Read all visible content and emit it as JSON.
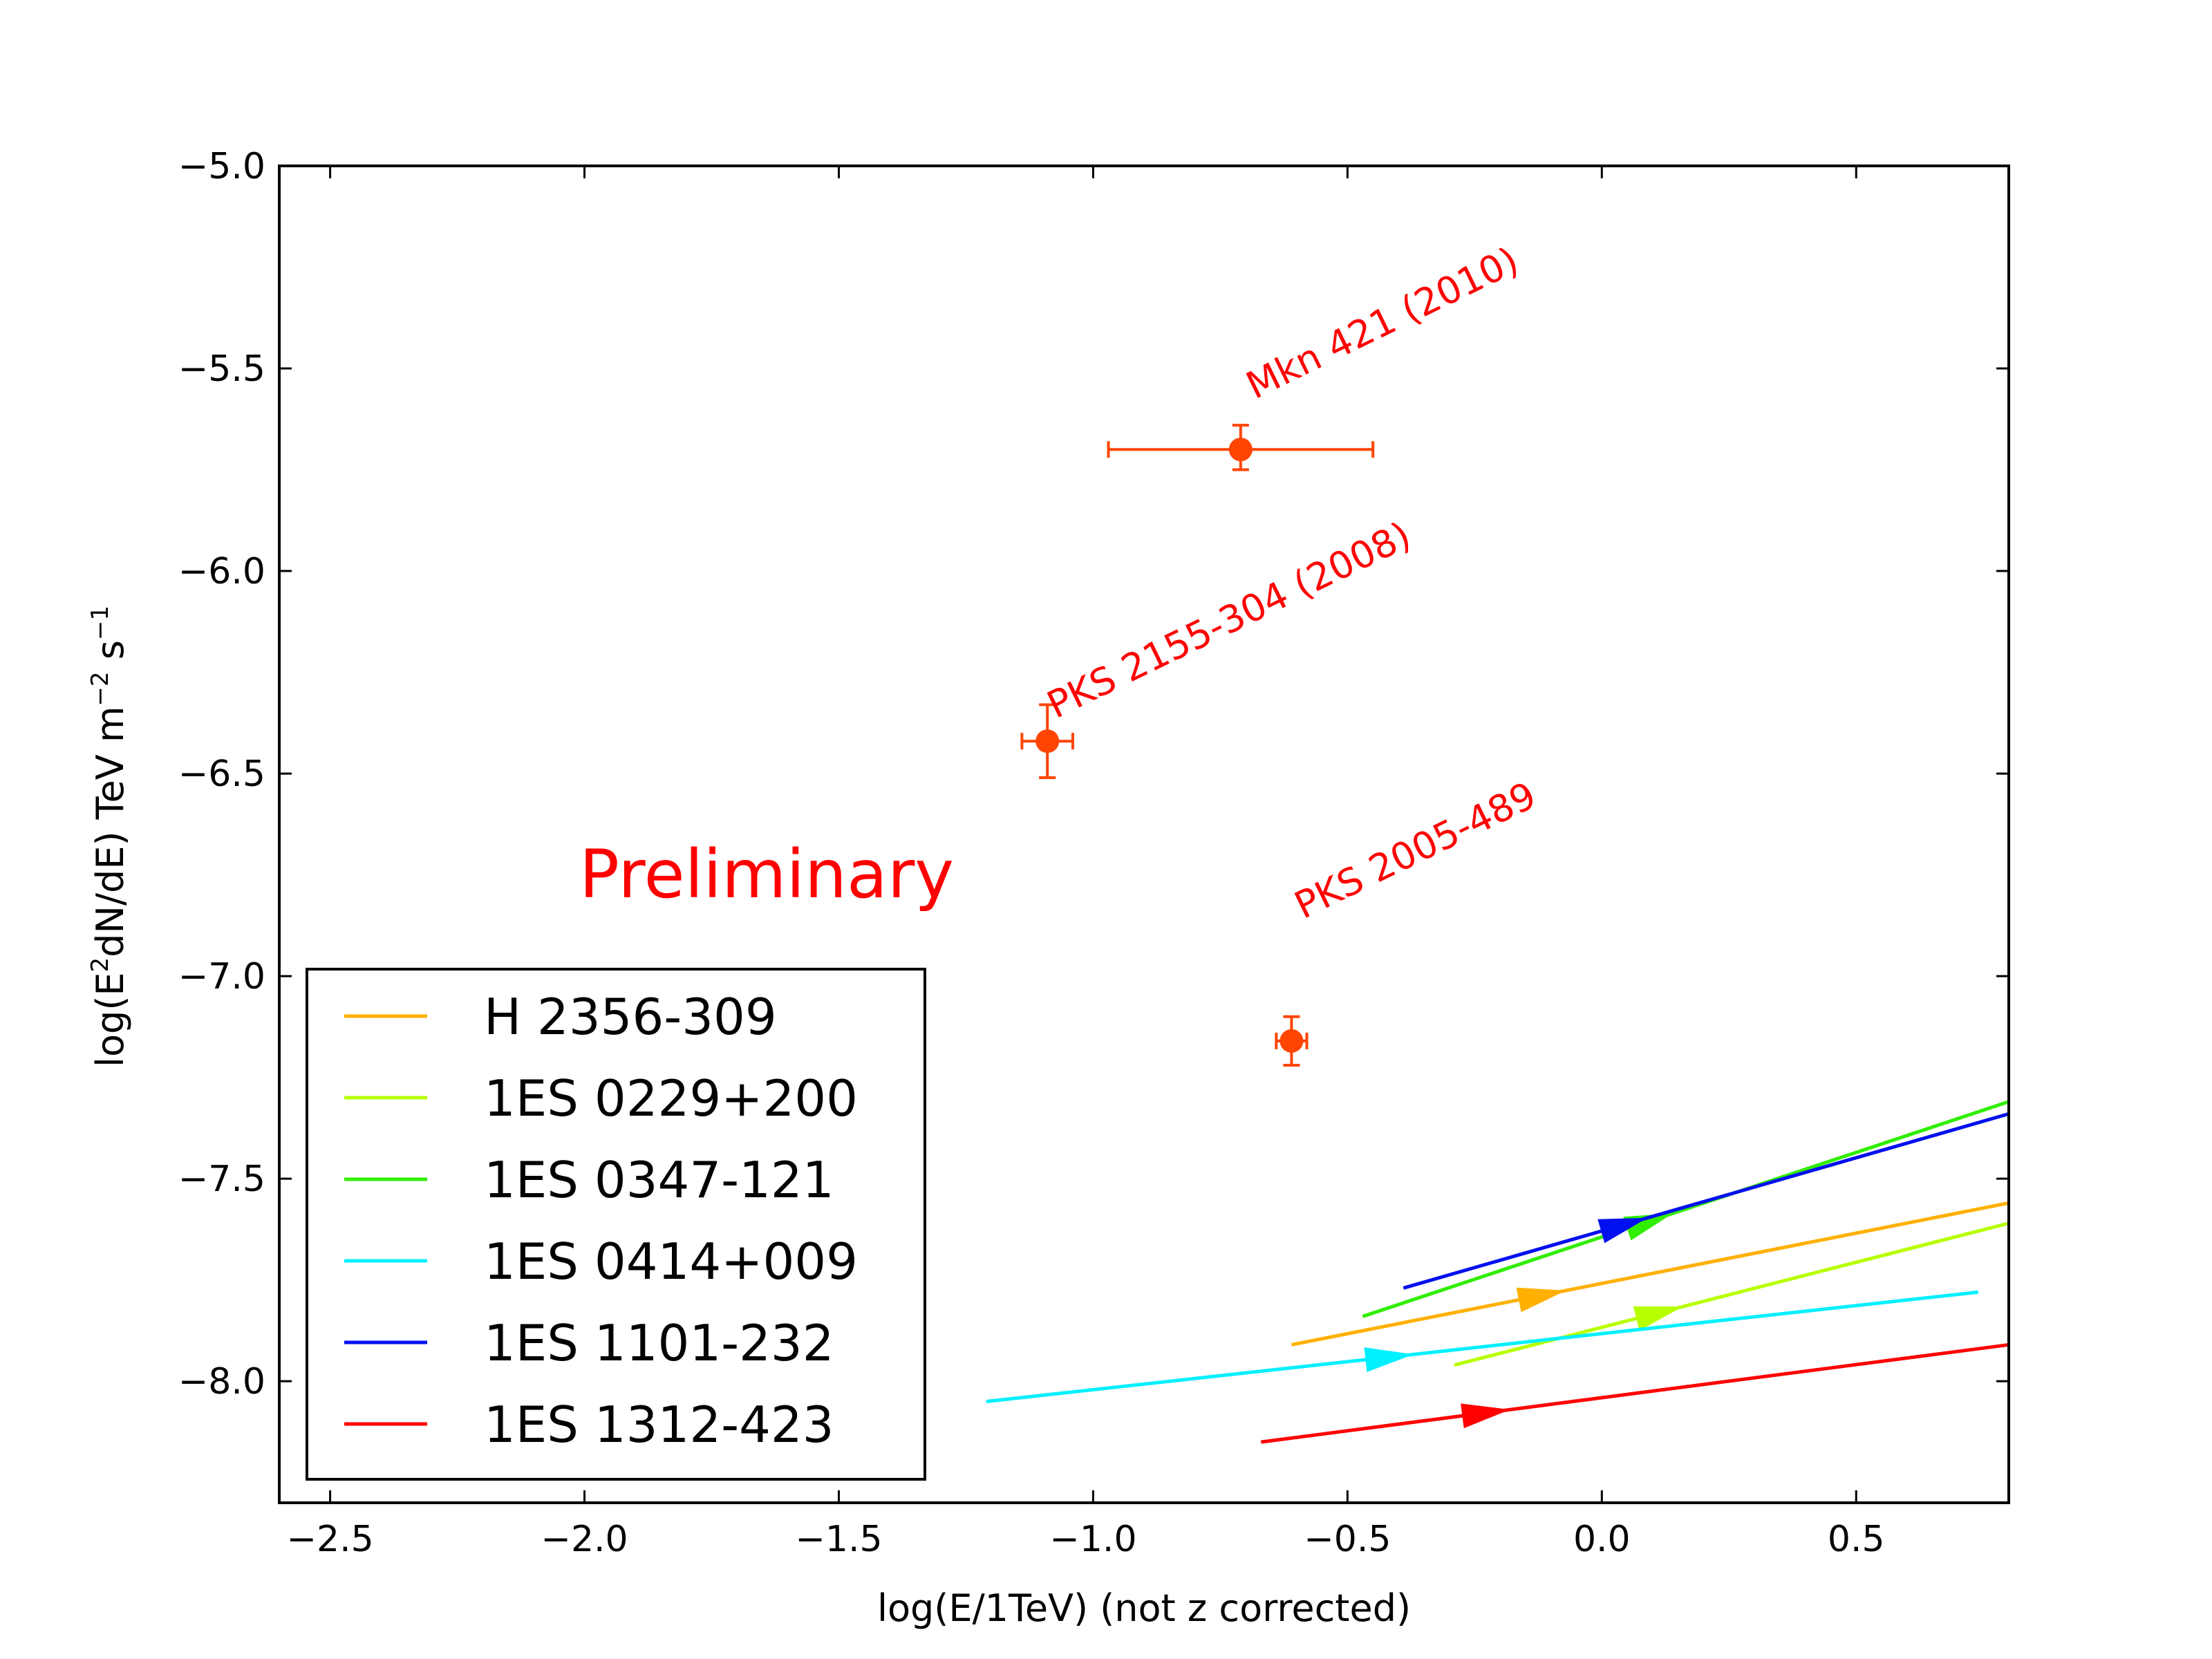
{
  "chart_data": {
    "type": "line",
    "title": "",
    "xlabel": "log(E/1TeV) (not z corrected)",
    "ylabel_parts": {
      "a": "log(E",
      "b": "2",
      "c": "dN/dE) TeV m",
      "d": "−2",
      "e": " s",
      "f": "−1"
    },
    "xlim": [
      -2.6,
      0.8
    ],
    "ylim": [
      -8.3,
      -5.0
    ],
    "x_ticks": [
      -2.5,
      -2.0,
      -1.5,
      -1.0,
      -0.5,
      0.0,
      0.5
    ],
    "x_tick_labels": [
      "−2.5",
      "−2.0",
      "−1.5",
      "−1.0",
      "−0.5",
      "0.0",
      "0.5"
    ],
    "y_ticks": [
      -5.0,
      -5.5,
      -6.0,
      -6.5,
      -7.0,
      -7.5,
      -8.0
    ],
    "y_tick_labels": [
      "−5.0",
      "−5.5",
      "−6.0",
      "−6.5",
      "−7.0",
      "−7.5",
      "−8.0"
    ],
    "grid": false,
    "legend_position": "lower-left",
    "series": [
      {
        "name": "H 2356-309",
        "color": "#ffb000",
        "x": [
          -0.61,
          0.8
        ],
        "y": [
          -7.91,
          -7.56
        ],
        "arrow_at": -0.07
      },
      {
        "name": "1ES 0229+200",
        "color": "#b8ff00",
        "x": [
          -0.29,
          0.8
        ],
        "y": [
          -7.96,
          -7.61
        ],
        "arrow_at": 0.16
      },
      {
        "name": "1ES 0347-121",
        "color": "#30ee00",
        "x": [
          -0.47,
          0.8
        ],
        "y": [
          -7.84,
          -7.31
        ],
        "arrow_at": 0.14
      },
      {
        "name": "1ES 0414+009",
        "color": "#00f0ff",
        "x": [
          -1.21,
          0.74
        ],
        "y": [
          -8.05,
          -7.78
        ],
        "arrow_at": -0.37
      },
      {
        "name": "1ES 1101-232",
        "color": "#0010ee",
        "x": [
          -0.39,
          0.8
        ],
        "y": [
          -7.77,
          -7.34
        ],
        "arrow_at": 0.09
      },
      {
        "name": "1ES 1312-423",
        "color": "#ff0000",
        "x": [
          -0.67,
          0.8
        ],
        "y": [
          -8.15,
          -7.91
        ],
        "arrow_at": -0.18
      }
    ],
    "points": [
      {
        "name": "Mkn 421 (2010)",
        "x": -0.71,
        "y": -5.7,
        "xerr_low": 0.26,
        "xerr_high": 0.26,
        "yerr_low": 0.05,
        "yerr_high": 0.06
      },
      {
        "name": "PKS 2155-304 (2008)",
        "x": -1.09,
        "y": -6.42,
        "xerr_low": 0.05,
        "xerr_high": 0.05,
        "yerr_low": 0.09,
        "yerr_high": 0.09
      },
      {
        "name": "PKS 2005-489",
        "x": -0.61,
        "y": -7.16,
        "xerr_low": 0.03,
        "xerr_high": 0.03,
        "yerr_low": 0.06,
        "yerr_high": 0.06
      }
    ],
    "point_color": "#ff4500",
    "annotations": [
      {
        "text": "Mkn 421 (2010)",
        "color": "#ff0000"
      },
      {
        "text": "PKS 2155-304 (2008)",
        "color": "#ff0000"
      },
      {
        "text": "PKS 2005-489",
        "color": "#ff0000"
      }
    ],
    "watermark": {
      "text": "Preliminary",
      "color": "#ff0000"
    }
  }
}
